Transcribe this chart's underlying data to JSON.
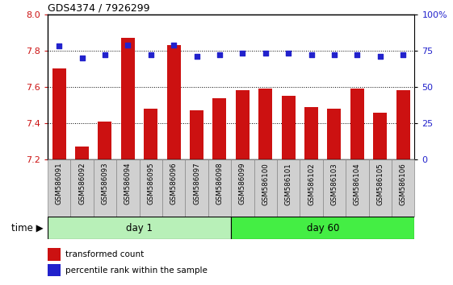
{
  "title": "GDS4374 / 7926299",
  "samples": [
    "GSM586091",
    "GSM586092",
    "GSM586093",
    "GSM586094",
    "GSM586095",
    "GSM586096",
    "GSM586097",
    "GSM586098",
    "GSM586099",
    "GSM586100",
    "GSM586101",
    "GSM586102",
    "GSM586103",
    "GSM586104",
    "GSM586105",
    "GSM586106"
  ],
  "transformed_count": [
    7.7,
    7.27,
    7.41,
    7.87,
    7.48,
    7.83,
    7.47,
    7.54,
    7.58,
    7.59,
    7.55,
    7.49,
    7.48,
    7.59,
    7.46,
    7.58
  ],
  "percentile_rank": [
    78,
    70,
    72,
    79,
    72,
    79,
    71,
    72,
    73,
    73,
    73,
    72,
    72,
    72,
    71,
    72
  ],
  "bar_color": "#cc1111",
  "dot_color": "#2222cc",
  "ylim_left": [
    7.2,
    8.0
  ],
  "ylim_right": [
    0,
    100
  ],
  "yticks_left": [
    7.2,
    7.4,
    7.6,
    7.8,
    8.0
  ],
  "yticks_right": [
    0,
    25,
    50,
    75,
    100
  ],
  "ytick_labels_right": [
    "0",
    "25",
    "50",
    "75",
    "100%"
  ],
  "day1_group": [
    0,
    7
  ],
  "day60_group": [
    8,
    15
  ],
  "day1_label": "day 1",
  "day60_label": "day 60",
  "time_label": "time",
  "legend_bar_label": "transformed count",
  "legend_dot_label": "percentile rank within the sample",
  "day1_color": "#b8f0b8",
  "day60_color": "#44ee44",
  "tick_bg_color": "#d0d0d0",
  "tick_border_color": "#888888"
}
